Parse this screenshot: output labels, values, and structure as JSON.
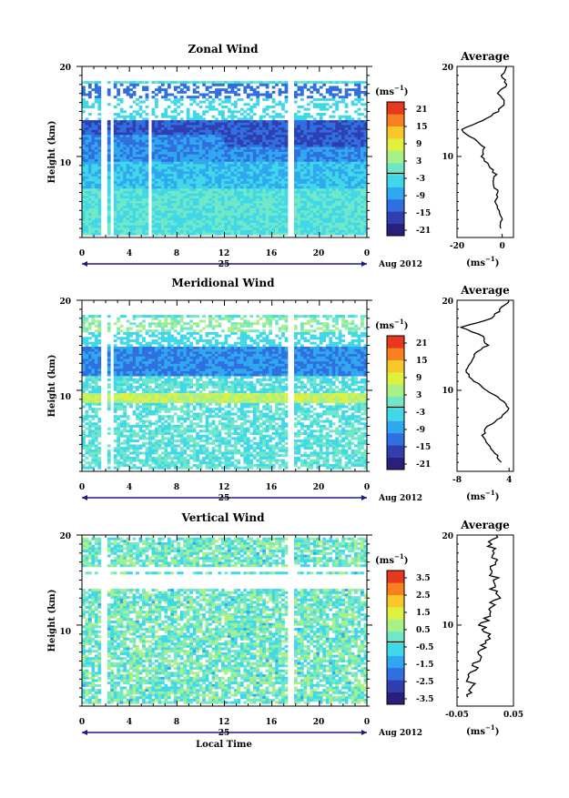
{
  "colors": {
    "scale": [
      "#2a1f7a",
      "#2f3fb0",
      "#2f6fe0",
      "#30a8f0",
      "#40d8e8",
      "#70e8c8",
      "#a8f088",
      "#e0f040",
      "#f8c828",
      "#f88020",
      "#e83820"
    ],
    "frame": "#000000",
    "timebar": "#1a1a80"
  },
  "common": {
    "ylabel": "Height (km)",
    "y_ticks": [
      "20",
      "10"
    ],
    "x_ticks": [
      "0",
      "4",
      "8",
      "12",
      "16",
      "20",
      "0"
    ],
    "day_label": "25",
    "month_label": "Aug 2012",
    "xlabel": "Local Time",
    "unit_label": "(ms",
    "unit_exp": "−1",
    "avg_title": "Average"
  },
  "chart_data": [
    {
      "type": "heatmap",
      "title": "Zonal Wind",
      "xlabel": "Local Time",
      "ylabel": "Height (km)",
      "xlim": [
        0,
        24
      ],
      "ylim": [
        1,
        20
      ],
      "colorbar_ticks": [
        "21",
        "15",
        "9",
        "3",
        "-3",
        "-9",
        "-15",
        "-21"
      ],
      "colorbar_range": [
        -24,
        24
      ],
      "profile_xticks": [
        "-20",
        "0"
      ],
      "profile_xlim": [
        -20,
        5
      ],
      "profile": {
        "height": [
          2,
          3,
          4,
          5,
          6,
          7,
          8,
          9,
          10,
          11,
          12,
          13,
          14,
          15,
          16,
          17,
          18,
          19,
          20
        ],
        "value": [
          -1,
          0,
          -1,
          -3,
          -2,
          -4,
          -3,
          -6,
          -9,
          -8,
          -13,
          -18,
          -8,
          -2,
          1,
          -2,
          2,
          0,
          2
        ]
      }
    },
    {
      "type": "heatmap",
      "title": "Meridional Wind",
      "xlabel": "Local Time",
      "ylabel": "Height (km)",
      "xlim": [
        0,
        24
      ],
      "ylim": [
        1,
        20
      ],
      "colorbar_ticks": [
        "21",
        "15",
        "9",
        "3",
        "-3",
        "-9",
        "-15",
        "-21"
      ],
      "colorbar_range": [
        -24,
        24
      ],
      "profile_xticks": [
        "-8",
        "4"
      ],
      "profile_xlim": [
        -8,
        5
      ],
      "profile": {
        "height": [
          2,
          3,
          4,
          5,
          6,
          7,
          8,
          9,
          10,
          11,
          12,
          13,
          14,
          15,
          16,
          17,
          18,
          19,
          20
        ],
        "value": [
          2,
          1,
          -1,
          -2,
          -1,
          2,
          4,
          2,
          -1,
          -4,
          -6,
          -5,
          -4,
          -1,
          -2,
          -7,
          0,
          2,
          4
        ]
      }
    },
    {
      "type": "heatmap",
      "title": "Vertical Wind",
      "xlabel": "Local Time",
      "ylabel": "Height (km)",
      "xlim": [
        0,
        24
      ],
      "ylim": [
        1,
        20
      ],
      "colorbar_ticks": [
        "3.5",
        "2.5",
        "1.5",
        "0.5",
        "-0.5",
        "-1.5",
        "-2.5",
        "-3.5"
      ],
      "colorbar_range": [
        -4,
        4
      ],
      "profile_xticks": [
        "-0.05",
        "0.05"
      ],
      "profile_xlim": [
        -0.05,
        0.05
      ],
      "profile": {
        "height": [
          2,
          3,
          4,
          5,
          6,
          7,
          8,
          9,
          10,
          11,
          12,
          13,
          14,
          15,
          16,
          17,
          18,
          19,
          20
        ],
        "value": [
          -0.03,
          -0.02,
          -0.03,
          -0.02,
          -0.015,
          -0.01,
          0,
          0.005,
          -0.005,
          0.005,
          0.01,
          0.02,
          0.015,
          0.02,
          0.01,
          0.02,
          0.015,
          0.01,
          0.02
        ]
      }
    }
  ]
}
